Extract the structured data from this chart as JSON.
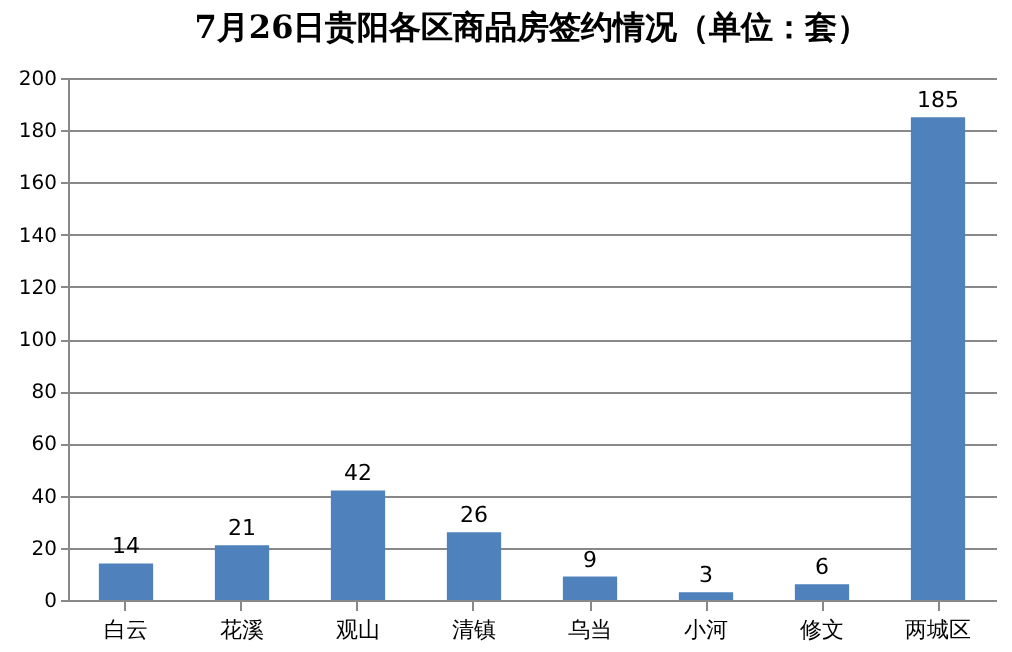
{
  "chart_data": {
    "type": "bar",
    "title": "7月26日贵阳各区商品房签约情况（单位：套）",
    "categories": [
      "白云",
      "花溪",
      "观山",
      "清镇",
      "乌当",
      "小河",
      "修文",
      "两城区"
    ],
    "values": [
      14,
      21,
      42,
      26,
      9,
      3,
      6,
      185
    ],
    "color": "#4f81bd",
    "ylim": [
      0,
      200
    ],
    "yticks": [
      0,
      20,
      40,
      60,
      80,
      100,
      120,
      140,
      160,
      180,
      200
    ],
    "grid": "y",
    "data_labels": true
  }
}
